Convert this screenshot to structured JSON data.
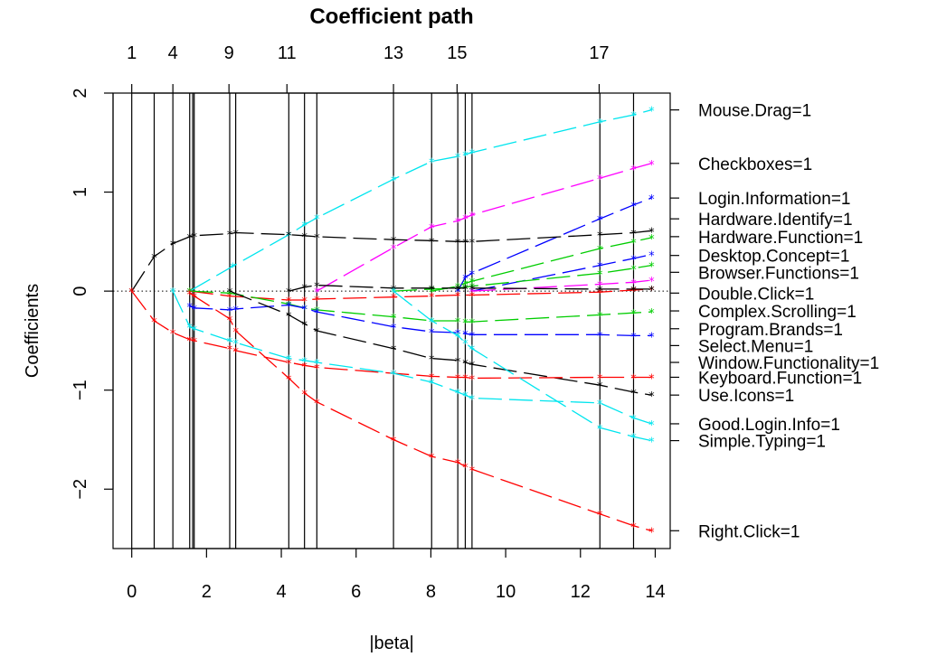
{
  "chart_data": {
    "type": "line",
    "title": "Coefficient path",
    "xlabel": "|beta|",
    "ylabel": "Coefficients",
    "xlim": [
      -0.5,
      14.4
    ],
    "ylim": [
      -2.6,
      2.0
    ],
    "x_ticks": [
      0,
      2,
      4,
      6,
      8,
      10,
      12,
      14
    ],
    "y_ticks": [
      -2,
      -1,
      0,
      1,
      2
    ],
    "top_axis": {
      "ticks": [
        {
          "label": "1",
          "x": 0
        },
        {
          "label": "4",
          "x": 1.1
        },
        {
          "label": "9",
          "x": 2.6
        },
        {
          "label": "11",
          "x": 4.15
        },
        {
          "label": "13",
          "x": 7.0
        },
        {
          "label": "15",
          "x": 8.7
        },
        {
          "label": "17",
          "x": 12.5
        }
      ]
    },
    "steps": [
      0,
      0.6,
      1.1,
      1.55,
      1.63,
      1.67,
      2.62,
      2.78,
      4.2,
      4.62,
      4.95,
      7.0,
      8.02,
      8.72,
      8.92,
      9.1,
      12.52,
      13.42
    ],
    "end_x": 13.9,
    "zero_line": 0,
    "series": [
      {
        "name": "Mouse.Drag=1",
        "color": "#00e5ee",
        "x": [
          1.55,
          2.7,
          4.2,
          4.62,
          4.95,
          7.0,
          8.02,
          8.72,
          8.92,
          9.1,
          12.52,
          13.42,
          13.9
        ],
        "y": [
          0,
          0.25,
          0.57,
          0.67,
          0.74,
          1.13,
          1.31,
          1.36,
          1.38,
          1.4,
          1.71,
          1.78,
          1.83
        ]
      },
      {
        "name": "Checkboxes=1",
        "color": "#ff00ff",
        "x": [
          4.95,
          7.0,
          8.02,
          8.72,
          8.92,
          9.1,
          12.52,
          13.42,
          13.9
        ],
        "y": [
          0,
          0.44,
          0.65,
          0.71,
          0.74,
          0.77,
          1.14,
          1.24,
          1.29
        ]
      },
      {
        "name": "Login.Information=1",
        "color": "#0000ff",
        "x": [
          8.72,
          8.92,
          9.1,
          12.52,
          13.42,
          13.9
        ],
        "y": [
          0,
          0.14,
          0.18,
          0.73,
          0.87,
          0.94
        ]
      },
      {
        "name": "Hardware.Identify=1",
        "color": "#000000",
        "x": [
          0,
          0.6,
          1.1,
          1.55,
          1.67,
          2.62,
          2.78,
          4.2,
          4.62,
          4.95,
          7.0,
          8.02,
          8.72,
          8.92,
          9.1,
          12.52,
          13.42,
          13.9
        ],
        "y": [
          0,
          0.35,
          0.48,
          0.55,
          0.56,
          0.58,
          0.59,
          0.57,
          0.56,
          0.55,
          0.52,
          0.51,
          0.5,
          0.5,
          0.5,
          0.57,
          0.59,
          0.61
        ]
      },
      {
        "name": "Hardware.Function=1",
        "color": "#00cd00",
        "x": [
          8.02,
          8.72,
          8.92,
          9.1,
          12.52,
          13.42,
          13.9
        ],
        "y": [
          0,
          0.05,
          0.08,
          0.1,
          0.43,
          0.5,
          0.54
        ]
      },
      {
        "name": "Desktop.Concept=1",
        "color": "#0000ff",
        "x": [
          9.1,
          12.52,
          13.42,
          13.9
        ],
        "y": [
          0,
          0.26,
          0.33,
          0.37
        ]
      },
      {
        "name": "Browser.Functions=1",
        "color": "#00cd00",
        "x": [
          7.0,
          8.02,
          8.72,
          8.92,
          9.1,
          12.52,
          13.42,
          13.9
        ],
        "y": [
          0,
          0.02,
          0.03,
          0.04,
          0.05,
          0.18,
          0.23,
          0.26
        ]
      },
      {
        "name": "Double.Click=1",
        "color": "#ff00ff",
        "x": [
          9.1,
          12.52,
          13.42,
          13.9
        ],
        "y": [
          0,
          0.07,
          0.09,
          0.11
        ]
      },
      {
        "name": "Complex.Scrolling=1",
        "color": "#ff0000",
        "x": [
          1.55,
          2.62,
          4.2,
          4.62,
          4.95,
          7.0,
          8.02,
          8.72,
          9.1,
          12.52,
          13.42,
          13.9
        ],
        "y": [
          0,
          -0.05,
          -0.09,
          -0.09,
          -0.08,
          -0.06,
          -0.05,
          -0.04,
          -0.04,
          -0.01,
          0.01,
          0.02
        ]
      },
      {
        "name": "Program.Brands=1",
        "color": "#00cd00",
        "x": [
          1.55,
          2.62,
          4.2,
          4.62,
          4.95,
          7.0,
          8.02,
          8.72,
          8.92,
          9.1,
          12.52,
          13.42,
          13.9
        ],
        "y": [
          0,
          -0.02,
          -0.13,
          -0.17,
          -0.19,
          -0.26,
          -0.3,
          -0.3,
          -0.31,
          -0.31,
          -0.24,
          -0.22,
          -0.21
        ]
      },
      {
        "name": "Select.Menu=1",
        "color": "#0000ff",
        "x": [
          1.55,
          1.67,
          2.62,
          2.78,
          4.2,
          4.62,
          4.95,
          7.0,
          8.02,
          8.72,
          8.92,
          9.1,
          12.52,
          13.42,
          13.9
        ],
        "y": [
          -0.15,
          -0.17,
          -0.19,
          -0.18,
          -0.14,
          -0.17,
          -0.21,
          -0.36,
          -0.41,
          -0.42,
          -0.43,
          -0.44,
          -0.44,
          -0.45,
          -0.45
        ]
      },
      {
        "name": "Window.Functionality=1",
        "color": "#000000",
        "x": [
          2.62,
          4.2,
          4.62,
          4.95,
          7.0,
          8.02,
          8.72,
          8.92,
          9.1,
          12.52,
          13.42,
          13.9
        ],
        "y": [
          0,
          -0.24,
          -0.33,
          -0.4,
          -0.58,
          -0.68,
          -0.7,
          -0.72,
          -0.74,
          -0.95,
          -1.02,
          -1.05
        ]
      },
      {
        "name": "Keyboard.Function=1",
        "color": "#ff0000",
        "x": [
          0,
          0.6,
          1.1,
          1.55,
          1.67,
          2.62,
          2.78,
          4.2,
          4.62,
          4.95,
          7.0,
          8.02,
          8.72,
          8.92,
          9.1,
          12.52,
          13.42,
          13.9
        ],
        "y": [
          0,
          -0.3,
          -0.42,
          -0.49,
          -0.5,
          -0.58,
          -0.6,
          -0.72,
          -0.75,
          -0.77,
          -0.83,
          -0.86,
          -0.87,
          -0.87,
          -0.88,
          -0.87,
          -0.87,
          -0.87
        ]
      },
      {
        "name": "Use.Icons=1",
        "color": "#000000",
        "x": [
          4.2,
          4.62,
          4.95,
          7.0,
          8.02,
          8.72,
          8.92,
          9.1,
          12.52,
          13.42,
          13.9
        ],
        "y": [
          0,
          0.04,
          0.06,
          0.03,
          0.03,
          0.03,
          0.03,
          0.03,
          0.02,
          0.02,
          0.02
        ]
      },
      {
        "name": "Good.Login.Info=1",
        "color": "#00e5ee",
        "x": [
          1.1,
          1.55,
          1.67,
          2.62,
          2.78,
          4.2,
          4.62,
          4.95,
          7.0,
          8.02,
          8.72,
          8.92,
          9.1,
          12.52,
          13.42,
          13.9
        ],
        "y": [
          0,
          -0.36,
          -0.38,
          -0.5,
          -0.52,
          -0.68,
          -0.7,
          -0.72,
          -0.83,
          -0.92,
          -1.02,
          -1.05,
          -1.08,
          -1.13,
          -1.28,
          -1.34
        ]
      },
      {
        "name": "Simple.Typing=1",
        "color": "#00e5ee",
        "x": [
          7.0,
          8.02,
          8.72,
          8.92,
          9.1,
          12.52,
          13.42,
          13.9
        ],
        "y": [
          0,
          -0.3,
          -0.45,
          -0.52,
          -0.58,
          -1.38,
          -1.47,
          -1.51
        ]
      },
      {
        "name": "Right.Click=1",
        "color": "#ff0000",
        "x": [
          1.55,
          1.67,
          2.62,
          2.78,
          4.2,
          4.62,
          4.95,
          7.0,
          8.02,
          8.72,
          8.92,
          9.1,
          12.52,
          13.42,
          13.9
        ],
        "y": [
          -0.02,
          -0.05,
          -0.28,
          -0.4,
          -0.88,
          -1.03,
          -1.12,
          -1.5,
          -1.67,
          -1.73,
          -1.77,
          -1.8,
          -2.25,
          -2.37,
          -2.42
        ]
      }
    ],
    "labels": [
      {
        "text": "Mouse.Drag=1",
        "y": 1.83
      },
      {
        "text": "Checkboxes=1",
        "y": 1.29
      },
      {
        "text": "Login.Information=1",
        "y": 0.94
      },
      {
        "text": "Hardware.Identify=1",
        "y": 0.73
      },
      {
        "text": "Hardware.Function=1",
        "y": 0.55
      },
      {
        "text": "Desktop.Concept=1",
        "y": 0.36
      },
      {
        "text": "Browser.Functions=1",
        "y": 0.19
      },
      {
        "text": "Double.Click=1",
        "y": -0.02
      },
      {
        "text": "Complex.Scrolling=1",
        "y": -0.2
      },
      {
        "text": "Program.Brands=1",
        "y": -0.38
      },
      {
        "text": "Select.Menu=1",
        "y": -0.55
      },
      {
        "text": "Window.Functionality=1",
        "y": -0.72
      },
      {
        "text": "Keyboard.Function=1",
        "y": -0.87
      },
      {
        "text": "Use.Icons=1",
        "y": -1.05
      },
      {
        "text": "Good.Login.Info=1",
        "y": -1.34
      },
      {
        "text": "Simple.Typing=1",
        "y": -1.51
      },
      {
        "text": "Right.Click=1",
        "y": -2.42
      }
    ]
  }
}
